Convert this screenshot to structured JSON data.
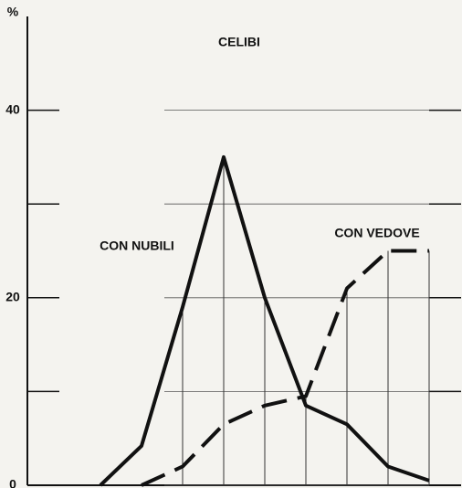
{
  "chart_data": {
    "type": "line",
    "title": "CELIBI",
    "y_label": "%",
    "categories": [
      null,
      null,
      null,
      null,
      null,
      null,
      null,
      null,
      null
    ],
    "series": [
      {
        "name": "CON NUBILI",
        "color": "#111111",
        "dash": false,
        "values": [
          0,
          4.2,
          19,
          35,
          20,
          8.5,
          6.5,
          2,
          0.5
        ]
      },
      {
        "name": "CON VEDOVE",
        "color": "#111111",
        "dash": true,
        "values": [
          null,
          0,
          2,
          6.5,
          8.5,
          9.5,
          21,
          25,
          25
        ]
      }
    ],
    "ylim": [
      0,
      50
    ],
    "yticks": [
      0,
      20,
      40
    ],
    "minor_yticks": [
      10,
      30
    ]
  }
}
